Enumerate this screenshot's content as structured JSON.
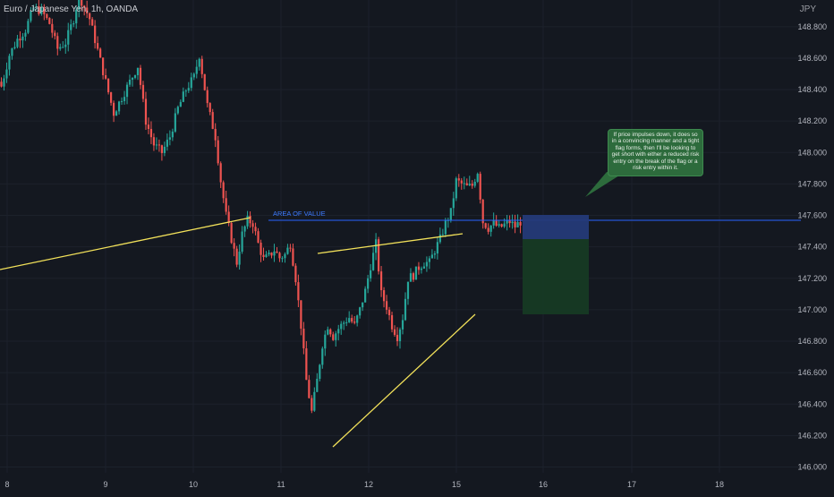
{
  "header": {
    "symbol_title": "Euro / Japanese Yen, 1h, OANDA",
    "currency": "JPY"
  },
  "annotations": {
    "zone_label": "AREA OF VALUE",
    "note": "If price impulses down, it does so in a convincing manner and a tight flag forms, then I'll be looking to get short with either a reduced risk entry on the break of the flag or a risk entry within it."
  },
  "colors": {
    "background": "#141820",
    "up_candle": "#26a69a",
    "down_candle": "#ef5350",
    "trendline": "#f2e15a",
    "zone_line": "#2962ff",
    "zone_label": "#3d7bff",
    "stop_box": "#243a78",
    "target_box": "#163a24",
    "note_bubble": "#2d6b3c",
    "grid": "#1c212b",
    "axis_text": "#b2b5be"
  },
  "chart_data": {
    "type": "candlestick",
    "symbol": "EURJPY",
    "timeframe": "1h",
    "y_ticks": [
      148.8,
      148.6,
      148.4,
      148.2,
      148.0,
      147.8,
      147.6,
      147.4,
      147.2,
      147.0,
      146.8,
      146.6,
      146.4,
      146.2,
      146.0
    ],
    "y_tick_labels": [
      "148.800",
      "148.600",
      "148.400",
      "148.200",
      "148.000",
      "147.800",
      "147.600",
      "147.400",
      "147.200",
      "147.000",
      "146.800",
      "146.600",
      "146.400",
      "146.200",
      "146.000"
    ],
    "x_tick_labels": [
      "8",
      "9",
      "10",
      "11",
      "12",
      "15",
      "16",
      "17",
      "18"
    ],
    "zone_level": 147.6,
    "stop_box": [
      147.66,
      147.49
    ],
    "target_box": [
      147.49,
      147.0
    ],
    "close_path": [
      [
        0,
        148.42
      ],
      [
        3,
        148.62
      ],
      [
        6,
        148.72
      ],
      [
        9,
        148.78
      ],
      [
        12,
        148.92
      ],
      [
        15,
        148.9
      ],
      [
        18,
        148.82
      ],
      [
        21,
        148.66
      ],
      [
        24,
        148.7
      ],
      [
        27,
        148.85
      ],
      [
        29,
        149.0
      ],
      [
        33,
        148.85
      ],
      [
        36,
        148.65
      ],
      [
        39,
        148.45
      ],
      [
        42,
        148.25
      ],
      [
        45,
        148.35
      ],
      [
        48,
        148.45
      ],
      [
        51,
        148.55
      ],
      [
        54,
        148.2
      ],
      [
        57,
        148.05
      ],
      [
        60,
        148.0
      ],
      [
        63,
        148.1
      ],
      [
        66,
        148.28
      ],
      [
        69,
        148.4
      ],
      [
        72,
        148.48
      ],
      [
        74,
        148.62
      ],
      [
        77,
        148.3
      ],
      [
        80,
        148.1
      ],
      [
        82,
        147.82
      ],
      [
        84,
        147.6
      ],
      [
        86,
        147.45
      ],
      [
        88,
        147.3
      ],
      [
        90,
        147.48
      ],
      [
        92,
        147.57
      ],
      [
        94,
        147.55
      ],
      [
        96,
        147.42
      ],
      [
        98,
        147.32
      ],
      [
        100,
        147.34
      ],
      [
        102,
        147.38
      ],
      [
        104,
        147.33
      ],
      [
        106,
        147.35
      ],
      [
        108,
        147.42
      ],
      [
        110,
        147.2
      ],
      [
        112,
        146.9
      ],
      [
        114,
        146.55
      ],
      [
        116,
        146.35
      ],
      [
        118,
        146.55
      ],
      [
        120,
        146.78
      ],
      [
        122,
        146.9
      ],
      [
        124,
        146.83
      ],
      [
        126,
        146.88
      ],
      [
        128,
        146.92
      ],
      [
        130,
        146.95
      ],
      [
        132,
        146.9
      ],
      [
        134,
        147.0
      ],
      [
        136,
        147.12
      ],
      [
        138,
        147.28
      ],
      [
        140,
        147.42
      ],
      [
        142,
        147.1
      ],
      [
        144,
        147.02
      ],
      [
        146,
        146.9
      ],
      [
        148,
        146.83
      ],
      [
        150,
        146.95
      ],
      [
        152,
        147.2
      ],
      [
        154,
        147.22
      ],
      [
        156,
        147.27
      ],
      [
        158,
        147.3
      ],
      [
        160,
        147.3
      ],
      [
        162,
        147.38
      ],
      [
        164,
        147.45
      ],
      [
        166,
        147.55
      ],
      [
        168,
        147.62
      ],
      [
        170,
        147.82
      ],
      [
        172,
        147.8
      ],
      [
        174,
        147.78
      ],
      [
        176,
        147.79
      ],
      [
        178,
        147.88
      ],
      [
        179,
        147.72
      ],
      [
        180,
        147.56
      ],
      [
        182,
        147.52
      ],
      [
        184,
        147.55
      ],
      [
        186,
        147.52
      ],
      [
        188,
        147.54
      ],
      [
        190,
        147.56
      ],
      [
        192,
        147.53
      ],
      [
        194,
        147.56
      ]
    ]
  }
}
